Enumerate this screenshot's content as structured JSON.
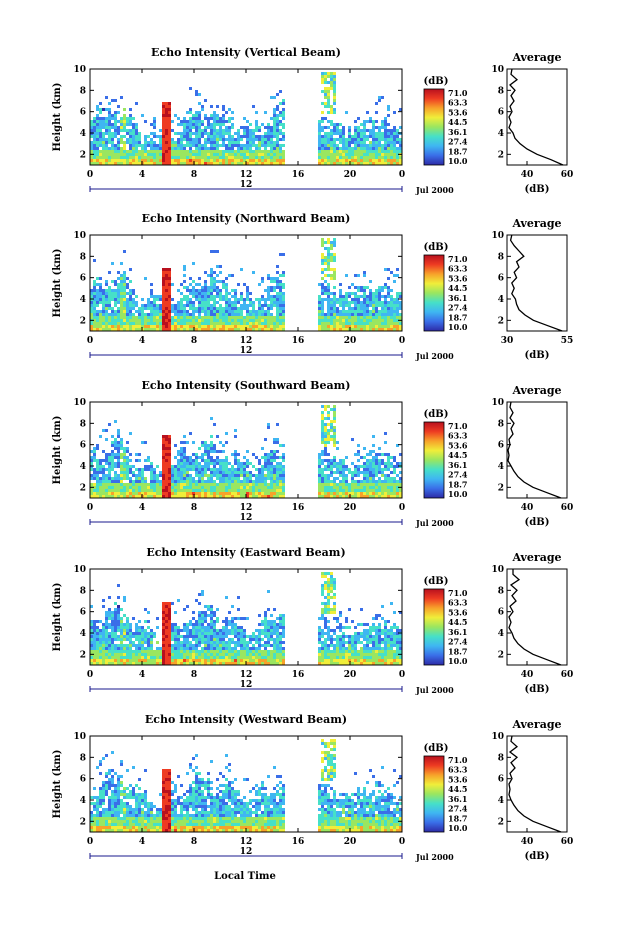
{
  "figure": {
    "xlabel": "Local Time",
    "date_label": "Jul 2000",
    "colorbar_unit": "(dB)",
    "colorbar_ticks": [
      "71.0",
      "63.3",
      "53.6",
      "44.5",
      "36.1",
      "27.4",
      "18.7",
      "10.0"
    ],
    "colorbar_colors": [
      "#2d2aa6",
      "#3a6ee8",
      "#3fb6f2",
      "#46e0c8",
      "#9ae660",
      "#f0ee3a",
      "#f7a22a",
      "#ee3b22",
      "#b8101e"
    ],
    "line_color": "#000000",
    "accent_axis_color": "#1a1a8c"
  },
  "chart_data": [
    {
      "type": "heatmap",
      "title": "Echo Intensity (Vertical Beam)",
      "xlabel": "",
      "ylabel": "Height (km)",
      "xlim": [
        0,
        24
      ],
      "ylim": [
        1,
        10
      ],
      "xticks": [
        "0",
        "4",
        "8",
        "12",
        "16",
        "20",
        "0"
      ],
      "yticks": [
        "2",
        "4",
        "6",
        "8",
        "10"
      ],
      "secondary_axis_label": "12",
      "data_gap_hours": [
        15.2,
        17.4
      ],
      "profile": {
        "title": "Average",
        "xlabel": "(dB)",
        "xlim": [
          30,
          60
        ],
        "xticks": [
          "40",
          "60"
        ],
        "yticks": [
          "2",
          "4",
          "6",
          "8",
          "10"
        ],
        "height_km": [
          1,
          1.5,
          2,
          2.5,
          3,
          3.5,
          4,
          4.5,
          5,
          5.5,
          6,
          6.5,
          7,
          7.5,
          8,
          8.5,
          9,
          9.5,
          10
        ],
        "mean_db": [
          58,
          52,
          45,
          40,
          36.5,
          34,
          33,
          31,
          32,
          31,
          32.5,
          31.5,
          33.5,
          32,
          34,
          31.5,
          35,
          32,
          32.5
        ]
      }
    },
    {
      "type": "heatmap",
      "title": "Echo Intensity (Northward Beam)",
      "xlabel": "",
      "ylabel": "Height (km)",
      "xlim": [
        0,
        24
      ],
      "ylim": [
        1,
        10
      ],
      "xticks": [
        "0",
        "4",
        "8",
        "12",
        "16",
        "20",
        "0"
      ],
      "yticks": [
        "2",
        "4",
        "6",
        "8",
        "10"
      ],
      "secondary_axis_label": "12",
      "data_gap_hours": [
        15.2,
        17.4
      ],
      "profile": {
        "title": "Average",
        "xlabel": "(dB)",
        "xlim": [
          30,
          55
        ],
        "xticks": [
          "30",
          "55"
        ],
        "yticks": [
          "2",
          "4",
          "6",
          "8",
          "10"
        ],
        "height_km": [
          1,
          1.5,
          2,
          2.5,
          3,
          3.5,
          4,
          4.5,
          5,
          5.5,
          6,
          6.5,
          7,
          7.5,
          8,
          8.5,
          9,
          9.5,
          10
        ],
        "mean_db": [
          53,
          47,
          41,
          37.5,
          35,
          34,
          33.5,
          32,
          33,
          32,
          34,
          33,
          35,
          34,
          37,
          35,
          33,
          31.5,
          32
        ]
      }
    },
    {
      "type": "heatmap",
      "title": "Echo Intensity (Southward Beam)",
      "xlabel": "",
      "ylabel": "Height (km)",
      "xlim": [
        0,
        24
      ],
      "ylim": [
        1,
        10
      ],
      "xticks": [
        "0",
        "4",
        "8",
        "12",
        "16",
        "20",
        "0"
      ],
      "yticks": [
        "2",
        "4",
        "6",
        "8",
        "10"
      ],
      "secondary_axis_label": "12",
      "data_gap_hours": [
        15.2,
        17.4
      ],
      "profile": {
        "title": "Average",
        "xlabel": "(dB)",
        "xlim": [
          30,
          60
        ],
        "xticks": [
          "40",
          "60"
        ],
        "yticks": [
          "2",
          "4",
          "6",
          "8",
          "10"
        ],
        "height_km": [
          1,
          1.5,
          2,
          2.5,
          3,
          3.5,
          4,
          4.5,
          5,
          5.5,
          6,
          6.5,
          7,
          7.5,
          8,
          8.5,
          9,
          9.5,
          10
        ],
        "mean_db": [
          57,
          50,
          43,
          38.5,
          35.5,
          33.5,
          32,
          30.5,
          31,
          30.5,
          31.5,
          31,
          33,
          32,
          33.5,
          31.5,
          33,
          31.5,
          32
        ]
      }
    },
    {
      "type": "heatmap",
      "title": "Echo Intensity (Eastward Beam)",
      "xlabel": "",
      "ylabel": "Height (km)",
      "xlim": [
        0,
        24
      ],
      "ylim": [
        1,
        10
      ],
      "xticks": [
        "0",
        "4",
        "8",
        "12",
        "16",
        "20",
        "0"
      ],
      "yticks": [
        "2",
        "4",
        "6",
        "8",
        "10"
      ],
      "secondary_axis_label": "12",
      "data_gap_hours": [
        15.2,
        17.4
      ],
      "profile": {
        "title": "Average",
        "xlabel": "(dB)",
        "xlim": [
          30,
          60
        ],
        "xticks": [
          "40",
          "60"
        ],
        "yticks": [
          "2",
          "4",
          "6",
          "8",
          "10"
        ],
        "height_km": [
          1,
          1.5,
          2,
          2.5,
          3,
          3.5,
          4,
          4.5,
          5,
          5.5,
          6,
          6.5,
          7,
          7.5,
          8,
          8.5,
          9,
          9.5,
          10
        ],
        "mean_db": [
          57,
          50,
          43,
          38.5,
          35.5,
          33.5,
          32.5,
          31,
          32,
          31,
          33,
          31.5,
          34.5,
          32.5,
          35,
          32,
          36,
          33,
          33
        ]
      }
    },
    {
      "type": "heatmap",
      "title": "Echo Intensity (Westward Beam)",
      "xlabel": "",
      "ylabel": "Height (km)",
      "xlim": [
        0,
        24
      ],
      "ylim": [
        1,
        10
      ],
      "xticks": [
        "0",
        "4",
        "8",
        "12",
        "16",
        "20",
        "0"
      ],
      "yticks": [
        "2",
        "4",
        "6",
        "8",
        "10"
      ],
      "secondary_axis_label": "12",
      "data_gap_hours": [
        15.2,
        17.4
      ],
      "profile": {
        "title": "Average",
        "xlabel": "(dB)",
        "xlim": [
          30,
          60
        ],
        "xticks": [
          "40",
          "60"
        ],
        "yticks": [
          "2",
          "4",
          "6",
          "8",
          "10"
        ],
        "height_km": [
          1,
          1.5,
          2,
          2.5,
          3,
          3.5,
          4,
          4.5,
          5,
          5.5,
          6,
          6.5,
          7,
          7.5,
          8,
          8.5,
          9,
          9.5,
          10
        ],
        "mean_db": [
          57,
          50,
          43,
          38.5,
          35.5,
          33.5,
          32,
          31,
          31.5,
          31,
          32.5,
          31.5,
          34,
          32,
          35,
          31.5,
          35,
          32,
          32.5
        ]
      }
    }
  ]
}
